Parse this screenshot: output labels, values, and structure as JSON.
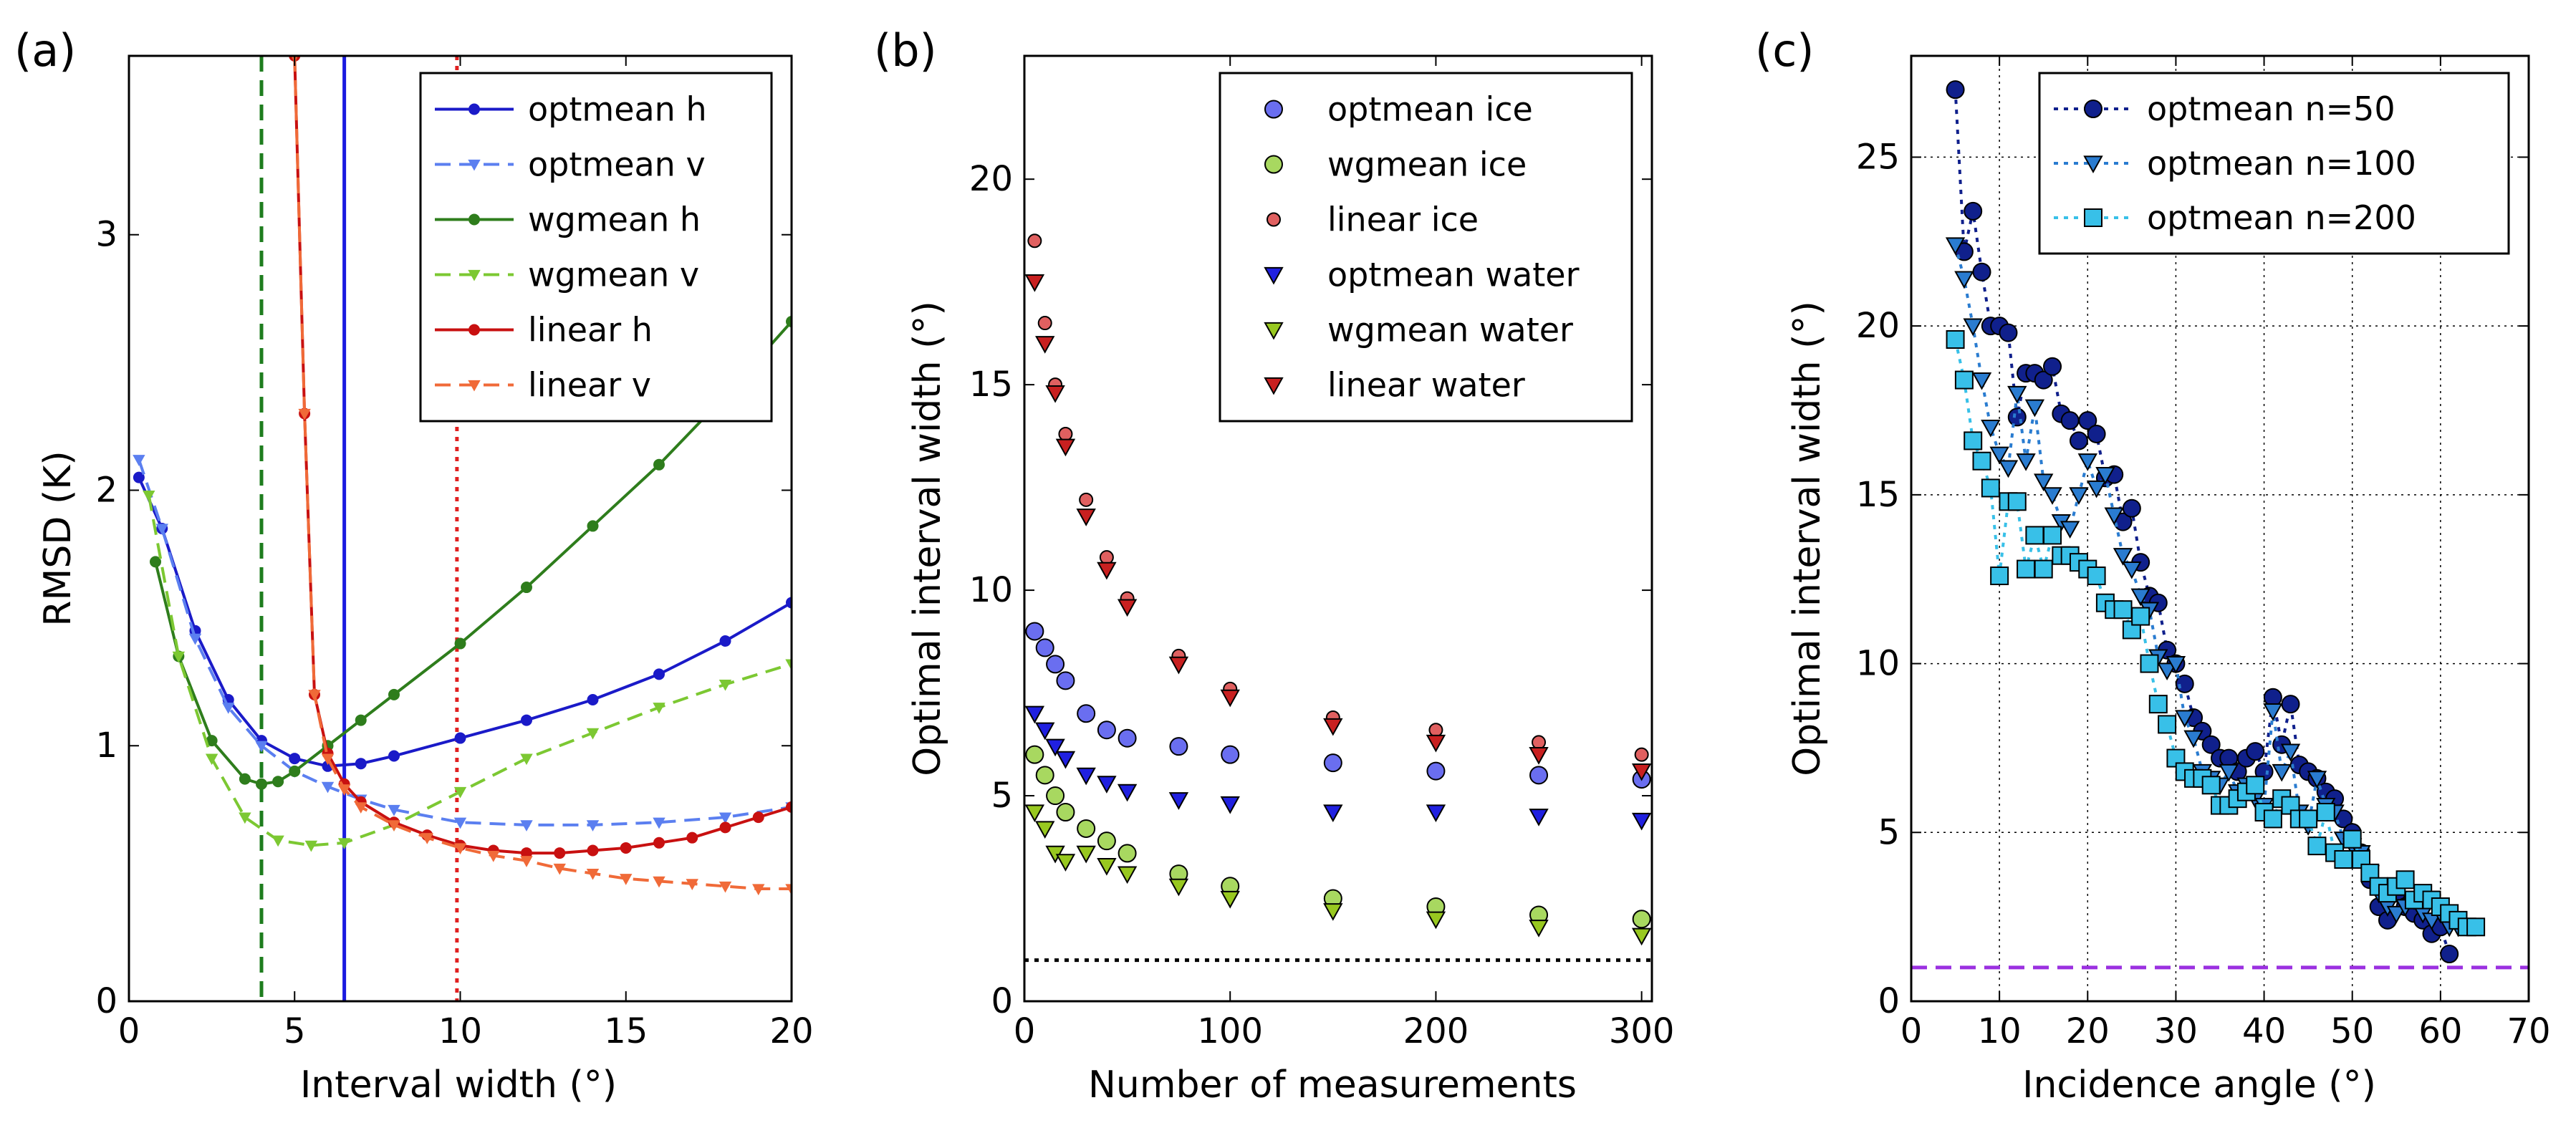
{
  "figure": {
    "panels": [
      {
        "label": "(a)",
        "xlabel": "Interval width ($^\\circ$)",
        "ylabel": "RMSD (K)",
        "xlim": [
          0,
          20
        ],
        "ylim": [
          0,
          3.7
        ],
        "xticks": [
          0,
          5,
          10,
          15,
          20
        ],
        "yticks": [
          0,
          1,
          2,
          3
        ]
      },
      {
        "label": "(b)",
        "xlabel": "Number of measurements",
        "ylabel": "Optimal interval width ($^\\circ$)",
        "xlim": [
          0,
          305
        ],
        "ylim": [
          0,
          23
        ],
        "xticks": [
          0,
          100,
          200,
          300
        ],
        "yticks": [
          0,
          5,
          10,
          15,
          20
        ]
      },
      {
        "label": "(c)",
        "xlabel": "Incidence angle ($^\\circ$)",
        "ylabel": "Optimal interval width ($^\\circ$)",
        "xlim": [
          0,
          70
        ],
        "ylim": [
          0,
          28
        ],
        "xticks": [
          0,
          10,
          20,
          30,
          40,
          50,
          60,
          70
        ],
        "yticks": [
          0,
          5,
          10,
          15,
          20,
          25
        ]
      }
    ]
  },
  "chart_data": [
    {
      "type": "line",
      "panel": "(a)",
      "xlabel": "Interval width (°)",
      "ylabel": "RMSD (K)",
      "xlim": [
        0,
        20
      ],
      "ylim": [
        0,
        3.7
      ],
      "grid": false,
      "legend_position": "top-right",
      "series": [
        {
          "name": "optmean h",
          "color": "#1a1ac8",
          "marker": "circle",
          "linestyle": "solid",
          "x": [
            0.3,
            1,
            2,
            3,
            4,
            5,
            6,
            7,
            8,
            10,
            12,
            14,
            16,
            18,
            20
          ],
          "y": [
            2.05,
            1.85,
            1.45,
            1.18,
            1.02,
            0.95,
            0.92,
            0.93,
            0.96,
            1.03,
            1.1,
            1.18,
            1.28,
            1.41,
            1.56
          ]
        },
        {
          "name": "optmean v",
          "color": "#5b7ff0",
          "marker": "triangle-down",
          "linestyle": "dashed",
          "x": [
            0.3,
            1,
            2,
            3,
            4,
            5,
            6,
            7,
            8,
            10,
            12,
            14,
            16,
            18,
            20
          ],
          "y": [
            2.12,
            1.85,
            1.42,
            1.15,
            1.0,
            0.9,
            0.84,
            0.79,
            0.75,
            0.7,
            0.69,
            0.69,
            0.7,
            0.72,
            0.76
          ]
        },
        {
          "name": "wgmean h",
          "color": "#2e7d1c",
          "marker": "circle",
          "linestyle": "solid",
          "x": [
            0.8,
            1.5,
            2.5,
            3.5,
            4,
            4.5,
            5,
            6,
            7,
            8,
            10,
            12,
            14,
            16,
            18,
            20
          ],
          "y": [
            1.72,
            1.35,
            1.02,
            0.87,
            0.85,
            0.86,
            0.9,
            1.0,
            1.1,
            1.2,
            1.4,
            1.62,
            1.86,
            2.1,
            2.37,
            2.66
          ]
        },
        {
          "name": "wgmean v",
          "color": "#7cc832",
          "marker": "triangle-down",
          "linestyle": "dashed",
          "x": [
            0.6,
            1.5,
            2.5,
            3.5,
            4.5,
            5.5,
            6.5,
            8,
            10,
            12,
            14,
            16,
            18,
            20
          ],
          "y": [
            1.98,
            1.35,
            0.95,
            0.72,
            0.63,
            0.61,
            0.62,
            0.69,
            0.82,
            0.95,
            1.05,
            1.15,
            1.24,
            1.32
          ]
        },
        {
          "name": "linear h",
          "color": "#c81010",
          "marker": "circle",
          "linestyle": "solid",
          "x": [
            5.0,
            5.3,
            5.6,
            6.0,
            6.5,
            7,
            8,
            9,
            10,
            11,
            12,
            13,
            14,
            15,
            16,
            17,
            18,
            19,
            20
          ],
          "y": [
            3.7,
            2.3,
            1.2,
            0.97,
            0.85,
            0.78,
            0.7,
            0.65,
            0.61,
            0.59,
            0.58,
            0.58,
            0.59,
            0.6,
            0.62,
            0.64,
            0.68,
            0.72,
            0.76
          ]
        },
        {
          "name": "linear v",
          "color": "#f06a38",
          "marker": "triangle-down",
          "linestyle": "dashed",
          "x": [
            5.0,
            5.3,
            5.6,
            6.0,
            6.5,
            7,
            8,
            9,
            10,
            11,
            12,
            13,
            14,
            15,
            16,
            17,
            18,
            19,
            20
          ],
          "y": [
            3.7,
            2.3,
            1.2,
            0.95,
            0.83,
            0.76,
            0.69,
            0.64,
            0.6,
            0.57,
            0.55,
            0.52,
            0.5,
            0.48,
            0.47,
            0.46,
            0.45,
            0.44,
            0.44
          ]
        }
      ],
      "vlines": [
        {
          "x": 4.0,
          "color": "#1e7d1e",
          "style": "dashed"
        },
        {
          "x": 6.5,
          "color": "#1a1ae0",
          "style": "solid"
        },
        {
          "x": 9.9,
          "color": "#e02020",
          "style": "dotted"
        }
      ]
    },
    {
      "type": "scatter",
      "panel": "(b)",
      "xlabel": "Number of measurements",
      "ylabel": "Optimal interval width (°)",
      "xlim": [
        0,
        305
      ],
      "ylim": [
        0,
        23
      ],
      "grid": false,
      "legend_position": "top-right",
      "series": [
        {
          "name": "optmean ice",
          "color": "#6a6ef0",
          "marker": "circle",
          "x": [
            5,
            10,
            15,
            20,
            30,
            40,
            50,
            75,
            100,
            150,
            200,
            250,
            300
          ],
          "y": [
            9.0,
            8.6,
            8.2,
            7.8,
            7.0,
            6.6,
            6.4,
            6.2,
            6.0,
            5.8,
            5.6,
            5.5,
            5.4
          ]
        },
        {
          "name": "wgmean ice",
          "color": "#a8d860",
          "marker": "circle",
          "x": [
            5,
            10,
            15,
            20,
            30,
            40,
            50,
            75,
            100,
            150,
            200,
            250,
            300
          ],
          "y": [
            6.0,
            5.5,
            5.0,
            4.6,
            4.2,
            3.9,
            3.6,
            3.1,
            2.8,
            2.5,
            2.3,
            2.1,
            2.0
          ]
        },
        {
          "name": "linear ice",
          "color": "#e06060",
          "marker": "circle-small",
          "x": [
            5,
            10,
            15,
            20,
            30,
            40,
            50,
            75,
            100,
            150,
            200,
            250,
            300
          ],
          "y": [
            18.5,
            16.5,
            15.0,
            13.8,
            12.2,
            10.8,
            9.8,
            8.4,
            7.6,
            6.9,
            6.6,
            6.3,
            6.0
          ]
        },
        {
          "name": "optmean water",
          "color": "#2020e0",
          "marker": "triangle-down",
          "x": [
            5,
            10,
            15,
            20,
            30,
            40,
            50,
            75,
            100,
            150,
            200,
            250,
            300
          ],
          "y": [
            7.0,
            6.6,
            6.2,
            5.9,
            5.5,
            5.3,
            5.1,
            4.9,
            4.8,
            4.6,
            4.6,
            4.5,
            4.4
          ]
        },
        {
          "name": "wgmean water",
          "color": "#98c820",
          "marker": "triangle-down",
          "x": [
            5,
            10,
            15,
            20,
            30,
            40,
            50,
            75,
            100,
            150,
            200,
            250,
            300
          ],
          "y": [
            4.6,
            4.2,
            3.6,
            3.4,
            3.6,
            3.3,
            3.1,
            2.8,
            2.5,
            2.2,
            2.0,
            1.8,
            1.6
          ]
        },
        {
          "name": "linear water",
          "color": "#c82020",
          "marker": "triangle-down",
          "x": [
            5,
            10,
            15,
            20,
            30,
            40,
            50,
            75,
            100,
            150,
            200,
            250,
            300
          ],
          "y": [
            17.5,
            16.0,
            14.8,
            13.5,
            11.8,
            10.5,
            9.6,
            8.2,
            7.4,
            6.7,
            6.3,
            6.0,
            5.6
          ]
        }
      ],
      "hlines": [
        {
          "y": 1.0,
          "color": "#000000",
          "style": "dotted"
        }
      ]
    },
    {
      "type": "line",
      "panel": "(c)",
      "xlabel": "Incidence angle (°)",
      "ylabel": "Optimal interval width (°)",
      "xlim": [
        0,
        70
      ],
      "ylim": [
        0,
        28
      ],
      "grid": true,
      "legend_position": "top-right",
      "series": [
        {
          "name": "optmean n=50",
          "color": "#10208c",
          "marker": "circle",
          "linestyle": "dotted",
          "x": [
            5,
            6,
            7,
            8,
            9,
            10,
            11,
            12,
            13,
            14,
            15,
            16,
            17,
            18,
            19,
            20,
            21,
            22,
            23,
            24,
            25,
            26,
            27,
            28,
            29,
            30,
            31,
            32,
            33,
            34,
            35,
            36,
            37,
            38,
            39,
            40,
            41,
            42,
            43,
            44,
            45,
            46,
            47,
            48,
            49,
            50,
            51,
            52,
            53,
            54,
            55,
            56,
            57,
            58,
            59,
            60,
            61
          ],
          "y": [
            27.0,
            22.2,
            23.4,
            21.6,
            20.0,
            20.0,
            19.8,
            17.3,
            18.6,
            18.6,
            18.4,
            18.8,
            17.4,
            17.2,
            16.6,
            17.2,
            16.8,
            15.5,
            15.6,
            14.2,
            14.6,
            13.0,
            12.0,
            11.8,
            10.4,
            10.0,
            9.4,
            8.4,
            8.0,
            7.6,
            7.2,
            7.2,
            6.8,
            7.2,
            7.4,
            6.8,
            9.0,
            7.6,
            8.8,
            7.0,
            6.8,
            6.6,
            6.2,
            6.0,
            5.4,
            5.0,
            4.4,
            3.6,
            2.8,
            2.4,
            3.2,
            2.8,
            2.6,
            2.4,
            2.0,
            2.2,
            1.4
          ]
        },
        {
          "name": "optmean n=100",
          "color": "#2a7cd0",
          "marker": "triangle-down",
          "linestyle": "dotted",
          "x": [
            5,
            6,
            7,
            8,
            9,
            10,
            11,
            12,
            13,
            14,
            15,
            16,
            17,
            18,
            19,
            20,
            21,
            22,
            23,
            24,
            25,
            26,
            27,
            28,
            29,
            30,
            31,
            32,
            33,
            34,
            35,
            36,
            37,
            38,
            39,
            40,
            41,
            42,
            43,
            44,
            45,
            46,
            47,
            48,
            49,
            50,
            51,
            52,
            53,
            54,
            55,
            56,
            57,
            58,
            59,
            60,
            61,
            62
          ],
          "y": [
            22.4,
            21.4,
            20.0,
            18.4,
            17.0,
            16.2,
            15.8,
            18.0,
            16.0,
            17.6,
            15.4,
            15.0,
            14.2,
            14.0,
            15.0,
            16.0,
            15.2,
            15.6,
            14.4,
            13.2,
            12.8,
            12.0,
            11.6,
            10.2,
            9.8,
            10.0,
            8.4,
            7.8,
            6.8,
            6.6,
            6.4,
            6.8,
            6.2,
            6.4,
            6.0,
            5.8,
            8.6,
            6.8,
            7.4,
            5.6,
            5.2,
            6.6,
            5.8,
            5.6,
            4.8,
            4.6,
            4.4,
            3.8,
            3.2,
            2.8,
            2.6,
            2.8,
            3.0,
            2.6,
            2.4,
            2.6,
            2.2,
            2.2
          ]
        },
        {
          "name": "optmean n=200",
          "color": "#38c0e8",
          "marker": "square",
          "linestyle": "dotted",
          "x": [
            5,
            6,
            7,
            8,
            9,
            10,
            11,
            12,
            13,
            14,
            15,
            16,
            17,
            18,
            19,
            20,
            21,
            22,
            23,
            24,
            25,
            26,
            27,
            28,
            29,
            30,
            31,
            32,
            33,
            34,
            35,
            36,
            37,
            38,
            39,
            40,
            41,
            42,
            43,
            44,
            45,
            46,
            47,
            48,
            49,
            50,
            51,
            52,
            53,
            54,
            55,
            56,
            57,
            58,
            59,
            60,
            61,
            62,
            63,
            64
          ],
          "y": [
            19.6,
            18.4,
            16.6,
            16.0,
            15.2,
            12.6,
            14.8,
            14.8,
            12.8,
            13.8,
            12.8,
            13.8,
            13.2,
            13.2,
            13.0,
            12.8,
            12.6,
            11.8,
            11.6,
            11.6,
            11.0,
            11.4,
            10.0,
            8.8,
            8.2,
            7.2,
            6.8,
            6.6,
            6.6,
            6.4,
            5.8,
            5.8,
            6.0,
            6.2,
            6.4,
            5.6,
            5.4,
            6.0,
            5.8,
            5.4,
            5.4,
            4.6,
            5.6,
            4.4,
            4.2,
            4.8,
            4.2,
            3.8,
            3.4,
            3.2,
            3.4,
            3.6,
            3.0,
            3.2,
            3.0,
            2.8,
            2.6,
            2.4,
            2.2,
            2.2
          ]
        }
      ],
      "hlines": [
        {
          "y": 1.0,
          "color": "#9b30e0",
          "style": "dashed"
        }
      ]
    }
  ]
}
